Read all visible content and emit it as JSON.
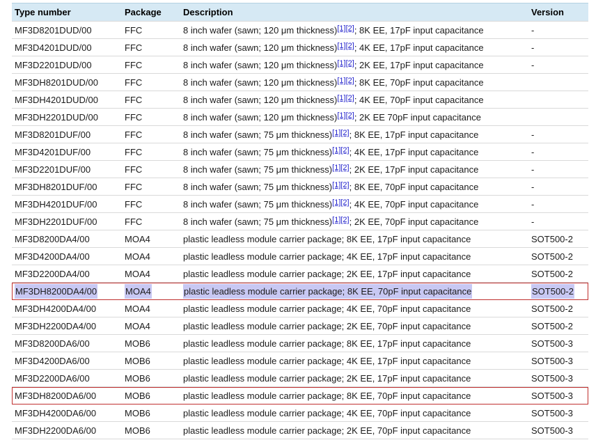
{
  "table": {
    "columns": [
      "Type number",
      "Package",
      "Description",
      "Version"
    ],
    "footnote_labels": [
      "[1]",
      "[2]"
    ],
    "colors": {
      "header_bg": "#d6e9f4",
      "header_top_line": "#b3d2e2",
      "row_separator": "#d9d9d9",
      "selection_highlight": "#c8c8f3",
      "red_border": "#c0302f",
      "link_blue": "#2222cc"
    },
    "rows": [
      {
        "type": "MF3D8201DUD/00",
        "package": "FFC",
        "desc_main": "8 inch wafer (sawn; 120 μm thickness)",
        "has_footnotes": true,
        "desc_rest": "; 8K EE, 17pF input capacitance",
        "version": "-",
        "selected": false,
        "red_border": false
      },
      {
        "type": "MF3D4201DUD/00",
        "package": "FFC",
        "desc_main": "8 inch wafer (sawn; 120 μm thickness)",
        "has_footnotes": true,
        "desc_rest": "; 4K EE, 17pF input capacitance",
        "version": "-",
        "selected": false,
        "red_border": false
      },
      {
        "type": "MF3D2201DUD/00",
        "package": "FFC",
        "desc_main": "8 inch wafer (sawn; 120 μm thickness)",
        "has_footnotes": true,
        "desc_rest": "; 2K EE, 17pF input capacitance",
        "version": "-",
        "selected": false,
        "red_border": false
      },
      {
        "type": "MF3DH8201DUD/00",
        "package": "FFC",
        "desc_main": "8 inch wafer (sawn; 120 μm thickness)",
        "has_footnotes": true,
        "desc_rest": "; 8K EE, 70pF input capacitance",
        "version": "",
        "selected": false,
        "red_border": false
      },
      {
        "type": "MF3DH4201DUD/00",
        "package": "FFC",
        "desc_main": "8 inch wafer (sawn; 120 μm thickness)",
        "has_footnotes": true,
        "desc_rest": "; 4K EE, 70pF input capacitance",
        "version": "",
        "selected": false,
        "red_border": false
      },
      {
        "type": "MF3DH2201DUD/00",
        "package": "FFC",
        "desc_main": "8 inch wafer (sawn; 120 μm thickness)",
        "has_footnotes": true,
        "desc_rest": "; 2K EE 70pF input capacitance",
        "version": "",
        "selected": false,
        "red_border": false
      },
      {
        "type": "MF3D8201DUF/00",
        "package": "FFC",
        "desc_main": "8 inch wafer (sawn; 75 μm thickness)",
        "has_footnotes": true,
        "desc_rest": "; 8K EE, 17pF input capacitance",
        "version": "-",
        "selected": false,
        "red_border": false
      },
      {
        "type": "MF3D4201DUF/00",
        "package": "FFC",
        "desc_main": "8 inch wafer (sawn; 75 μm thickness)",
        "has_footnotes": true,
        "desc_rest": "; 4K EE, 17pF input capacitance",
        "version": "-",
        "selected": false,
        "red_border": false
      },
      {
        "type": "MF3D2201DUF/00",
        "package": "FFC",
        "desc_main": "8 inch wafer (sawn; 75 μm thickness)",
        "has_footnotes": true,
        "desc_rest": "; 2K EE, 17pF input capacitance",
        "version": "-",
        "selected": false,
        "red_border": false
      },
      {
        "type": "MF3DH8201DUF/00",
        "package": "FFC",
        "desc_main": "8 inch wafer (sawn; 75 μm thickness)",
        "has_footnotes": true,
        "desc_rest": "; 8K EE, 70pF input capacitance",
        "version": "-",
        "selected": false,
        "red_border": false
      },
      {
        "type": "MF3DH4201DUF/00",
        "package": "FFC",
        "desc_main": "8 inch wafer (sawn; 75 μm thickness)",
        "has_footnotes": true,
        "desc_rest": "; 4K EE, 70pF input capacitance",
        "version": "-",
        "selected": false,
        "red_border": false
      },
      {
        "type": "MF3DH2201DUF/00",
        "package": "FFC",
        "desc_main": "8 inch wafer (sawn; 75 μm thickness)",
        "has_footnotes": true,
        "desc_rest": "; 2K EE, 70pF input capacitance",
        "version": "-",
        "selected": false,
        "red_border": false
      },
      {
        "type": "MF3D8200DA4/00",
        "package": "MOA4",
        "desc_main": "plastic leadless module carrier package; 8K EE, 17pF input capacitance",
        "has_footnotes": false,
        "desc_rest": "",
        "version": "SOT500-2",
        "selected": false,
        "red_border": false
      },
      {
        "type": "MF3D4200DA4/00",
        "package": "MOA4",
        "desc_main": "plastic leadless module carrier package; 4K EE, 17pF input capacitance",
        "has_footnotes": false,
        "desc_rest": "",
        "version": "SOT500-2",
        "selected": false,
        "red_border": false
      },
      {
        "type": "MF3D2200DA4/00",
        "package": "MOA4",
        "desc_main": "plastic leadless module carrier package; 2K EE, 17pF input capacitance",
        "has_footnotes": false,
        "desc_rest": "",
        "version": "SOT500-2",
        "selected": false,
        "red_border": false
      },
      {
        "type": "MF3DH8200DA4/00",
        "package": "MOA4",
        "desc_main": "plastic leadless module carrier package; 8K EE, 70pF input capacitance",
        "has_footnotes": false,
        "desc_rest": "",
        "version": "SOT500-2",
        "selected": true,
        "red_border": true
      },
      {
        "type": "MF3DH4200DA4/00",
        "package": "MOA4",
        "desc_main": "plastic leadless module carrier package; 4K EE, 70pF input capacitance",
        "has_footnotes": false,
        "desc_rest": "",
        "version": "SOT500-2",
        "selected": false,
        "red_border": false
      },
      {
        "type": "MF3DH2200DA4/00",
        "package": "MOA4",
        "desc_main": "plastic leadless module carrier package; 2K EE, 70pF input capacitance",
        "has_footnotes": false,
        "desc_rest": "",
        "version": "SOT500-2",
        "selected": false,
        "red_border": false
      },
      {
        "type": "MF3D8200DA6/00",
        "package": "MOB6",
        "desc_main": "plastic leadless module carrier package; 8K EE, 17pF input capacitance",
        "has_footnotes": false,
        "desc_rest": "",
        "version": "SOT500-3",
        "selected": false,
        "red_border": false
      },
      {
        "type": "MF3D4200DA6/00",
        "package": "MOB6",
        "desc_main": "plastic leadless module carrier package; 4K EE, 17pF input capacitance",
        "has_footnotes": false,
        "desc_rest": "",
        "version": "SOT500-3",
        "selected": false,
        "red_border": false
      },
      {
        "type": "MF3D2200DA6/00",
        "package": "MOB6",
        "desc_main": "plastic leadless module carrier package; 2K EE, 17pF input capacitance",
        "has_footnotes": false,
        "desc_rest": "",
        "version": "SOT500-3",
        "selected": false,
        "red_border": false
      },
      {
        "type": "MF3DH8200DA6/00",
        "package": "MOB6",
        "desc_main": "plastic leadless module carrier package; 8K EE, 70pF input capacitance",
        "has_footnotes": false,
        "desc_rest": "",
        "version": "SOT500-3",
        "selected": false,
        "red_border": true
      },
      {
        "type": "MF3DH4200DA6/00",
        "package": "MOB6",
        "desc_main": "plastic leadless module carrier package; 4K EE, 70pF input capacitance",
        "has_footnotes": false,
        "desc_rest": "",
        "version": "SOT500-3",
        "selected": false,
        "red_border": false
      },
      {
        "type": "MF3DH2200DA6/00",
        "package": "MOB6",
        "desc_main": "plastic leadless module carrier package; 2K EE, 70pF input capacitance",
        "has_footnotes": false,
        "desc_rest": "",
        "version": "SOT500-3",
        "selected": false,
        "red_border": false
      }
    ]
  }
}
